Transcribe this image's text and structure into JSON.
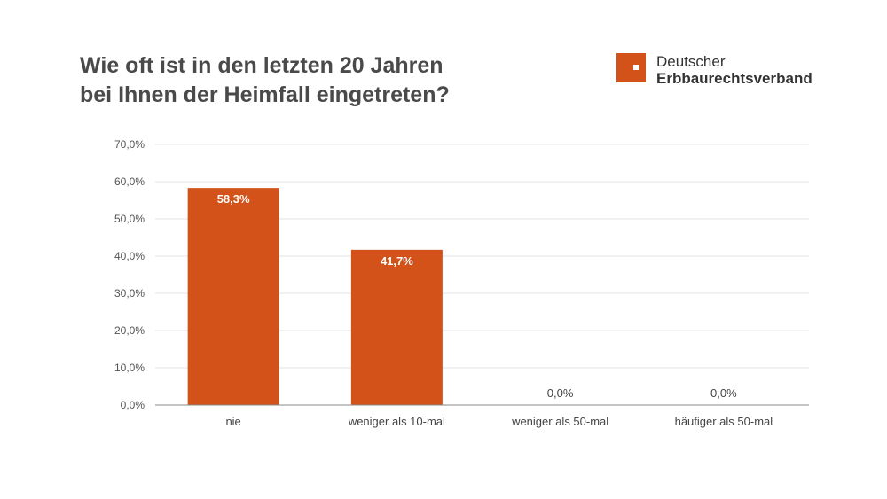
{
  "title_lines": [
    "Wie oft ist in den letzten 20 Jahren",
    "bei Ihnen der Heimfall eingetreten?"
  ],
  "logo": {
    "line1": "Deutscher",
    "line2": "Erbbaurechtsverband",
    "color": "#d2521a"
  },
  "chart_data": {
    "type": "bar",
    "categories": [
      "nie",
      "weniger als 10-mal",
      "weniger als 50-mal",
      "häufiger als 50-mal"
    ],
    "values": [
      58.3,
      41.7,
      0.0,
      0.0
    ],
    "value_labels": [
      "58,3%",
      "41,7%",
      "0,0%",
      "0,0%"
    ],
    "y_ticks": [
      "0,0%",
      "10,0%",
      "20,0%",
      "30,0%",
      "40,0%",
      "50,0%",
      "60,0%",
      "70,0%"
    ],
    "ylim": [
      0,
      70
    ],
    "grid": true,
    "bar_color": "#d2521a"
  }
}
